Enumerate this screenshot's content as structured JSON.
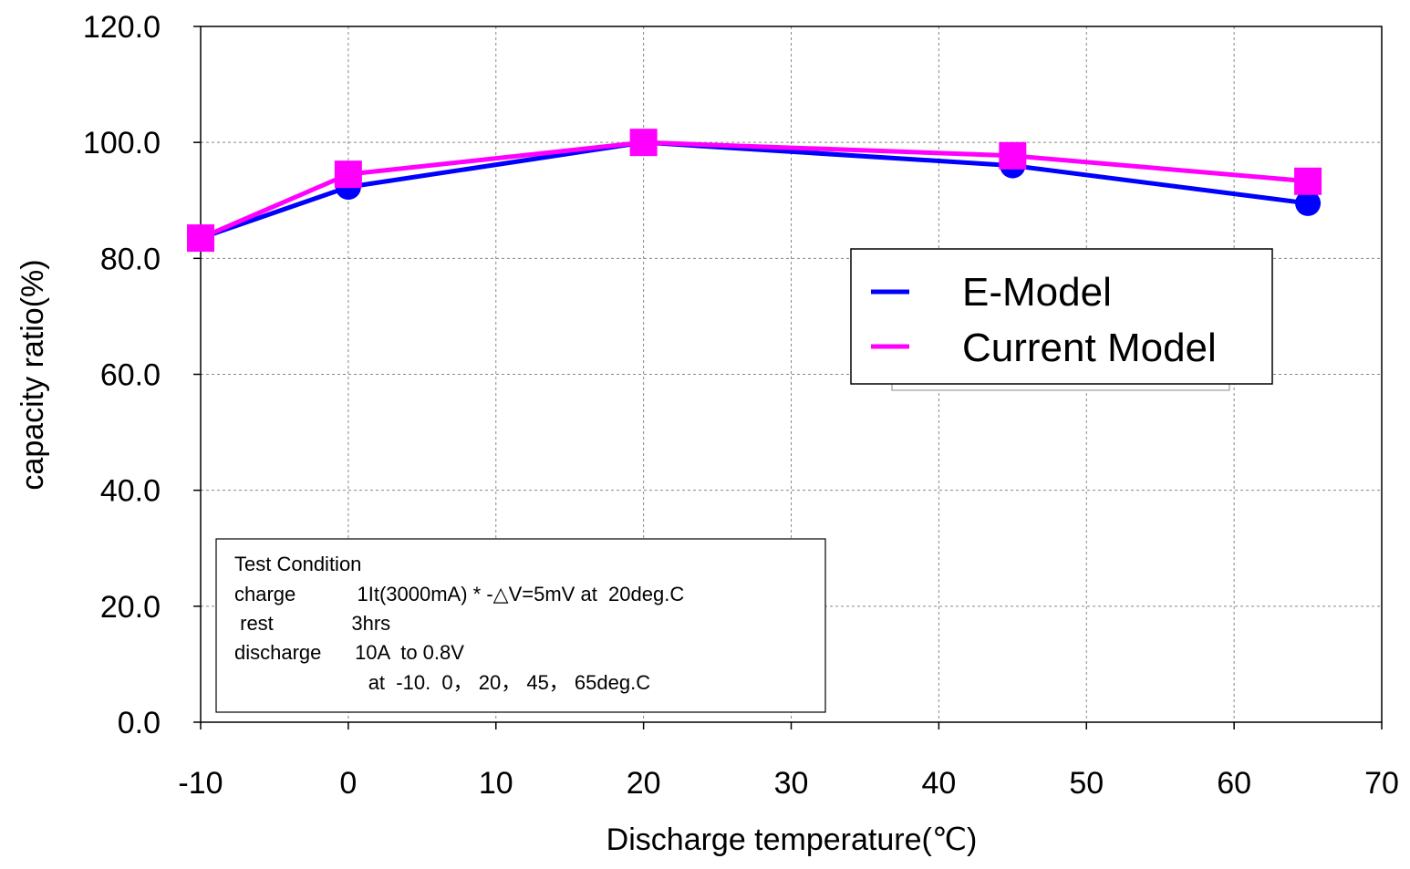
{
  "chart_data": {
    "type": "line",
    "xlabel": "Discharge  temperature(℃)",
    "ylabel": "capacity ratio(%)",
    "xlim": [
      -10,
      70
    ],
    "ylim": [
      0,
      120
    ],
    "x_ticks": [
      "-10",
      "0",
      "10",
      "20",
      "30",
      "40",
      "50",
      "60",
      "70"
    ],
    "x_tick_values": [
      -10,
      0,
      10,
      20,
      30,
      40,
      50,
      60,
      70
    ],
    "y_ticks": [
      "0.0",
      "20.0",
      "40.0",
      "60.0",
      "80.0",
      "100.0",
      "120.0"
    ],
    "y_tick_values": [
      0,
      20,
      40,
      60,
      80,
      100,
      120
    ],
    "grid": true,
    "legend_position": "right",
    "series": [
      {
        "name": "E-Model",
        "color": "#0000ff",
        "marker": "circle",
        "x": [
          -10,
          0,
          20,
          45,
          65
        ],
        "y": [
          83.5,
          92.3,
          100.0,
          96.0,
          89.5
        ]
      },
      {
        "name": "Current Model",
        "color": "#ff00ff",
        "marker": "square",
        "x": [
          -10,
          0,
          20,
          45,
          65
        ],
        "y": [
          83.5,
          94.5,
          100.0,
          97.7,
          93.3
        ]
      }
    ],
    "annotation": {
      "lines": [
        "Test Condition",
        "charge           1It(3000mA) * -△V=5mV at  20deg.C",
        " rest              3hrs",
        "discharge      10A  to 0.8V",
        "                        at  -10.  0， 20， 45， 65deg.C"
      ]
    }
  }
}
